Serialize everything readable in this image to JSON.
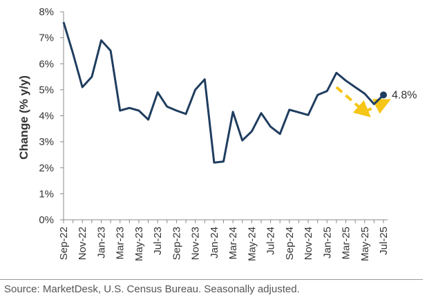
{
  "chart_data": {
    "type": "line",
    "title": "",
    "xlabel": "",
    "ylabel": "Change (% y/y)",
    "ylim": [
      0,
      8
    ],
    "y_ticks": [
      "0%",
      "1%",
      "2%",
      "3%",
      "4%",
      "5%",
      "6%",
      "7%",
      "8%"
    ],
    "x_ticks": [
      "Sep-22",
      "Nov-22",
      "Jan-23",
      "Mar-23",
      "May-23",
      "Jul-23",
      "Sep-23",
      "Nov-23",
      "Jan-24",
      "Mar-24",
      "May-24",
      "Jul-24",
      "Sep-24",
      "Nov-24",
      "Jan-25",
      "Mar-25",
      "May-25",
      "Jul-25"
    ],
    "grid": false,
    "series": [
      {
        "name": "Change (% y/y)",
        "color": "#1f3d5f",
        "x": [
          "Sep-22",
          "Oct-22",
          "Nov-22",
          "Dec-22",
          "Jan-23",
          "Feb-23",
          "Mar-23",
          "Apr-23",
          "May-23",
          "Jun-23",
          "Jul-23",
          "Aug-23",
          "Sep-23",
          "Oct-23",
          "Nov-23",
          "Dec-23",
          "Jan-24",
          "Feb-24",
          "Mar-24",
          "Apr-24",
          "May-24",
          "Jun-24",
          "Jul-24",
          "Aug-24",
          "Sep-24",
          "Oct-24",
          "Nov-24",
          "Dec-24",
          "Jan-25",
          "Feb-25",
          "Mar-25",
          "Apr-25",
          "May-25",
          "Jun-25",
          "Jul-25"
        ],
        "values": [
          7.6,
          6.4,
          5.1,
          5.5,
          6.9,
          6.5,
          4.2,
          4.3,
          4.2,
          3.85,
          4.9,
          4.35,
          4.2,
          4.07,
          5.0,
          5.4,
          2.2,
          2.24,
          4.15,
          3.05,
          3.4,
          4.1,
          3.58,
          3.3,
          4.23,
          4.13,
          4.03,
          4.8,
          4.95,
          5.65,
          5.35,
          5.1,
          4.85,
          4.45,
          4.8
        ]
      }
    ],
    "annotations": [
      {
        "text": "4.8%",
        "x": "Jul-25",
        "y": 4.8,
        "marker_color": "#1f3d5f"
      }
    ],
    "trend_arrows": [
      {
        "from": [
          "Feb-25",
          5.1
        ],
        "to": [
          "May-25",
          4.15
        ],
        "color": "#f5c518",
        "style": "dashed"
      },
      {
        "from": [
          "May-25",
          4.15
        ],
        "to": [
          "Jul-25",
          4.5
        ],
        "color": "#f5c518",
        "style": "dashed"
      }
    ]
  },
  "footer": {
    "source": "Source: MarketDesk, U.S. Census Bureau. Seasonally adjusted."
  }
}
